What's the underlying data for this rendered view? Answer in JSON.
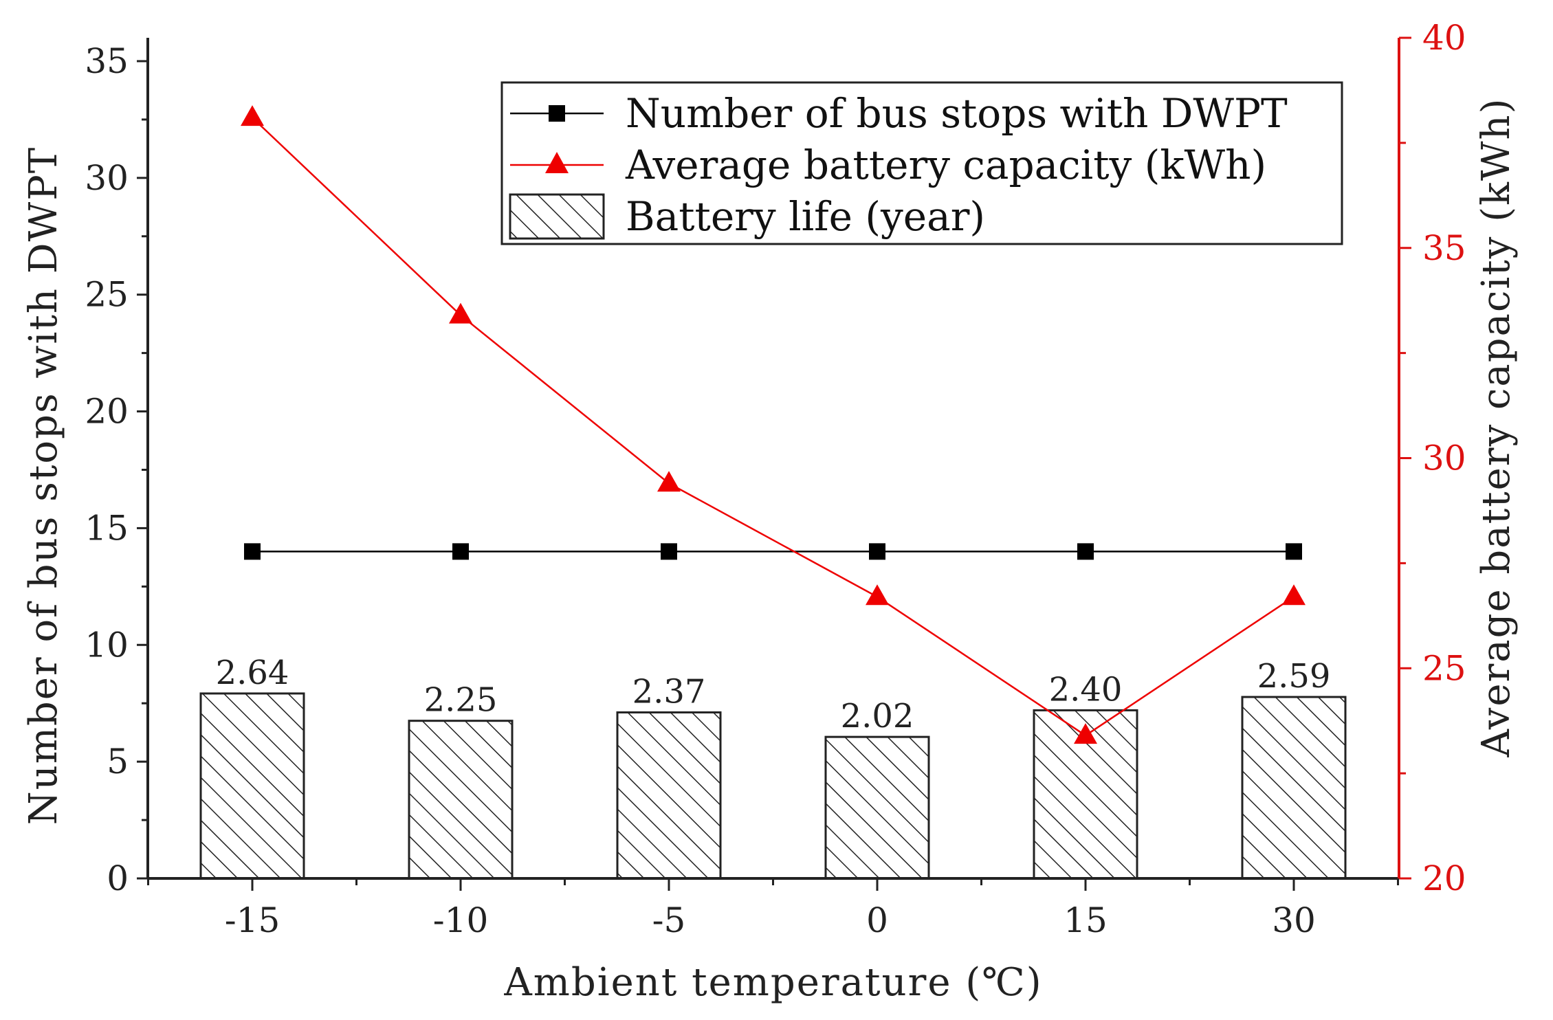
{
  "chart_data": {
    "type": "bar",
    "categories": [
      "-15",
      "-10",
      "-5",
      "0",
      "15",
      "30"
    ],
    "xlabel": "Ambient temperature (℃)",
    "ylabel_left": "Number of bus stops with DWPT",
    "ylabel_right": "Average battery capacity (kWh)",
    "ylim_left": [
      0,
      36
    ],
    "yticks_left": [
      "0",
      "5",
      "10",
      "15",
      "20",
      "25",
      "30",
      "35"
    ],
    "ylim_right": [
      20,
      40
    ],
    "yticks_right": [
      "20",
      "25",
      "30",
      "35",
      "40"
    ],
    "legend_position": "top-right",
    "grid": false,
    "series": [
      {
        "name": "Battery life (year)",
        "kind": "bar",
        "axis": "left-scaled",
        "values": [
          2.64,
          2.25,
          2.37,
          2.02,
          2.4,
          2.59
        ],
        "value_labels": [
          "2.64",
          "2.25",
          "2.37",
          "2.02",
          "2.40",
          "2.59"
        ],
        "display_scale": 3,
        "color": "#222222",
        "pattern": "diagonal-hatch"
      },
      {
        "name": "Number of bus stops with DWPT",
        "kind": "line",
        "axis": "left",
        "marker": "square",
        "values": [
          14,
          14,
          14,
          14,
          14,
          14
        ],
        "color": "#000000"
      },
      {
        "name": "Average battery capacity (kWh)",
        "kind": "line",
        "axis": "right",
        "marker": "triangle",
        "values": [
          38.1,
          33.4,
          29.4,
          26.7,
          23.4,
          26.7
        ],
        "color": "#ee0000"
      }
    ]
  }
}
